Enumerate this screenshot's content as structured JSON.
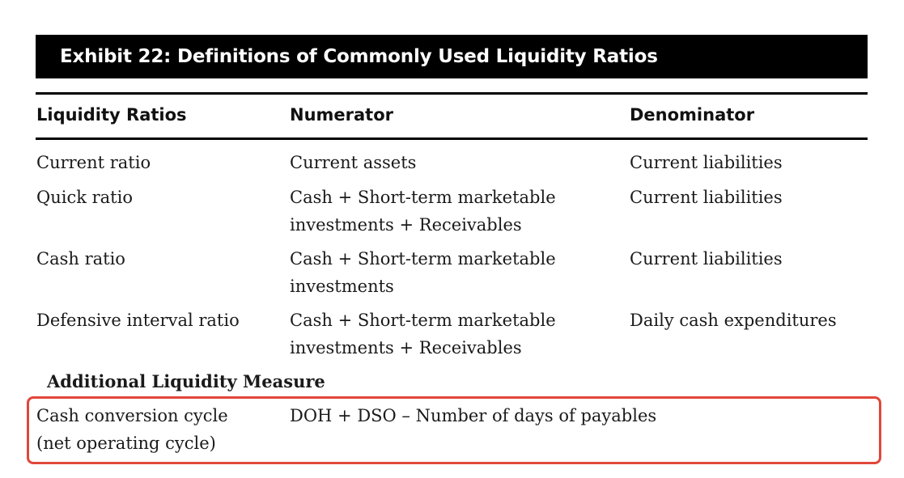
{
  "exhibit": {
    "title": "Exhibit 22: Definitions of Commonly Used Liquidity Ratios"
  },
  "table": {
    "headers": {
      "ratio": "Liquidity Ratios",
      "numerator": "Numerator",
      "denominator": "Denominator"
    },
    "rows": [
      {
        "ratio": "Current ratio",
        "numerator": [
          "Current assets"
        ],
        "denominator": "Current liabilities"
      },
      {
        "ratio": "Quick ratio",
        "numerator": [
          "Cash + Short-term marketable",
          "investments + Receivables"
        ],
        "denominator": "Current liabilities"
      },
      {
        "ratio": "Cash ratio",
        "numerator": [
          "Cash + Short-term marketable",
          "investments"
        ],
        "denominator": "Current liabilities"
      },
      {
        "ratio": "Defensive interval ratio",
        "numerator": [
          "Cash + Short-term marketable",
          "investments + Receivables"
        ],
        "denominator": "Daily cash expenditures"
      }
    ],
    "additional": {
      "section_label": "Additional Liquidity Measure",
      "measure": [
        "Cash conversion cycle",
        "(net operating cycle)"
      ],
      "formula": "DOH + DSO – Number of days of payables"
    }
  },
  "colors": {
    "banner_bg": "#000000",
    "banner_text": "#ffffff",
    "highlight_border": "#e0473a"
  }
}
